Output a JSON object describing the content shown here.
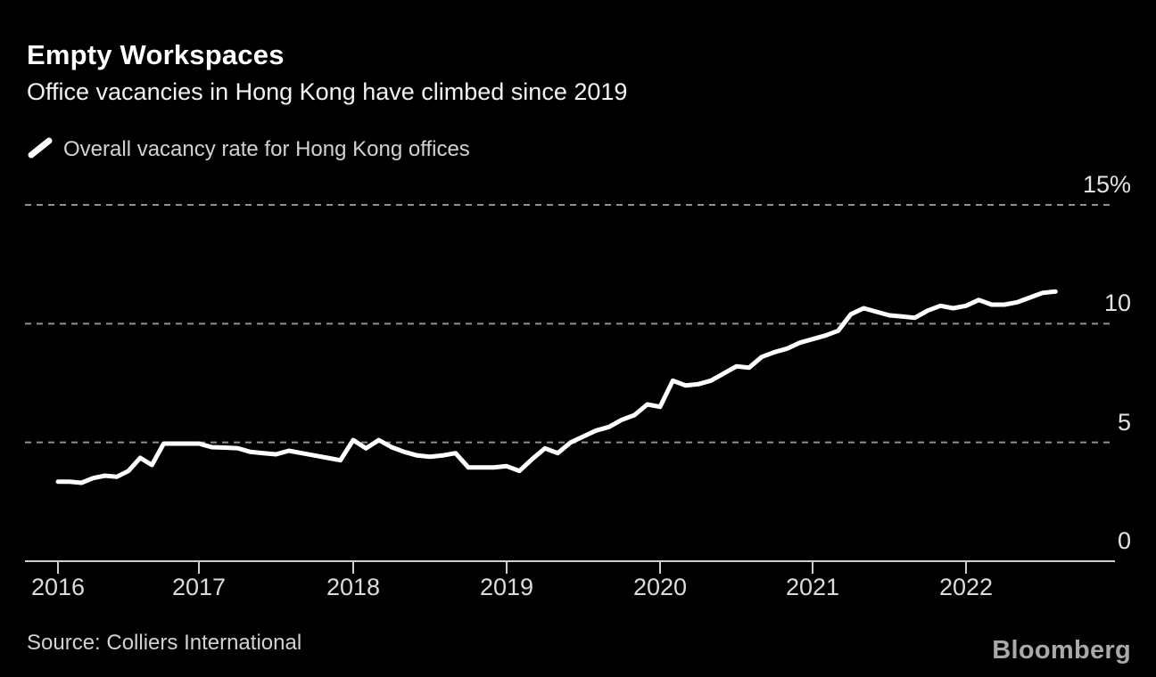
{
  "header": {
    "title": "Empty Workspaces",
    "subtitle": "Office vacancies in Hong Kong have climbed since 2019"
  },
  "legend": {
    "label": "Overall vacancy rate for Hong Kong offices"
  },
  "footer": {
    "source": "Source: Colliers International",
    "logo": "Bloomberg"
  },
  "colors": {
    "background": "#000000",
    "line": "#ffffff",
    "grid": "#909090",
    "axis": "#cfcfcf",
    "title_text": "#ffffff",
    "secondary_text": "#d2d2d2",
    "tick_text": "#e3e3e3",
    "logo_text": "#a9a9a9"
  },
  "chart_data": {
    "type": "line",
    "title": "Empty Workspaces",
    "subtitle": "Office vacancies in Hong Kong have climbed since 2019",
    "series": [
      {
        "name": "Overall vacancy rate for Hong Kong offices",
        "unit": "%",
        "values": [
          3.35,
          3.35,
          3.3,
          3.5,
          3.6,
          3.55,
          3.8,
          4.35,
          4.05,
          4.95,
          4.95,
          4.95,
          4.95,
          4.8,
          4.78,
          4.76,
          4.6,
          4.55,
          4.5,
          4.65,
          4.55,
          4.45,
          4.35,
          4.25,
          5.1,
          4.75,
          5.1,
          4.8,
          4.6,
          4.45,
          4.4,
          4.45,
          4.55,
          3.95,
          3.95,
          3.95,
          4.0,
          3.8,
          4.3,
          4.75,
          4.55,
          5.0,
          5.25,
          5.5,
          5.65,
          5.95,
          6.15,
          6.6,
          6.5,
          7.6,
          7.4,
          7.45,
          7.6,
          7.9,
          8.2,
          8.15,
          8.6,
          8.8,
          8.95,
          9.2,
          9.35,
          9.5,
          9.7,
          10.4,
          10.65,
          10.5,
          10.35,
          10.3,
          10.25,
          10.55,
          10.75,
          10.65,
          10.75,
          11.0,
          10.8,
          10.8,
          10.9,
          11.1,
          11.3,
          11.35
        ]
      }
    ],
    "x": [
      "2016-01",
      "2016-02",
      "2016-03",
      "2016-04",
      "2016-05",
      "2016-06",
      "2016-07",
      "2016-08",
      "2016-09",
      "2016-10",
      "2016-11",
      "2016-12",
      "2017-01",
      "2017-02",
      "2017-03",
      "2017-04",
      "2017-05",
      "2017-06",
      "2017-07",
      "2017-08",
      "2017-09",
      "2017-10",
      "2017-11",
      "2017-12",
      "2018-01",
      "2018-02",
      "2018-03",
      "2018-04",
      "2018-05",
      "2018-06",
      "2018-07",
      "2018-08",
      "2018-09",
      "2018-10",
      "2018-11",
      "2018-12",
      "2019-01",
      "2019-02",
      "2019-03",
      "2019-04",
      "2019-05",
      "2019-06",
      "2019-07",
      "2019-08",
      "2019-09",
      "2019-10",
      "2019-11",
      "2019-12",
      "2020-01",
      "2020-02",
      "2020-03",
      "2020-04",
      "2020-05",
      "2020-06",
      "2020-07",
      "2020-08",
      "2020-09",
      "2020-10",
      "2020-11",
      "2020-12",
      "2021-01",
      "2021-02",
      "2021-03",
      "2021-04",
      "2021-05",
      "2021-06",
      "2021-07",
      "2021-08",
      "2021-09",
      "2021-10",
      "2021-11",
      "2021-12",
      "2022-01",
      "2022-02",
      "2022-03",
      "2022-04",
      "2022-05",
      "2022-06",
      "2022-07",
      "2022-08"
    ],
    "x_tick_labels": [
      "2016",
      "2017",
      "2018",
      "2019",
      "2020",
      "2021",
      "2022"
    ],
    "y_ticks": [
      {
        "label": "15%",
        "value": 15
      },
      {
        "label": "10",
        "value": 10
      },
      {
        "label": "5",
        "value": 5
      },
      {
        "label": "0",
        "value": 0
      }
    ],
    "ylim": [
      0,
      15
    ],
    "grid": "horizontal-dashed",
    "legend_position": "top-left"
  }
}
